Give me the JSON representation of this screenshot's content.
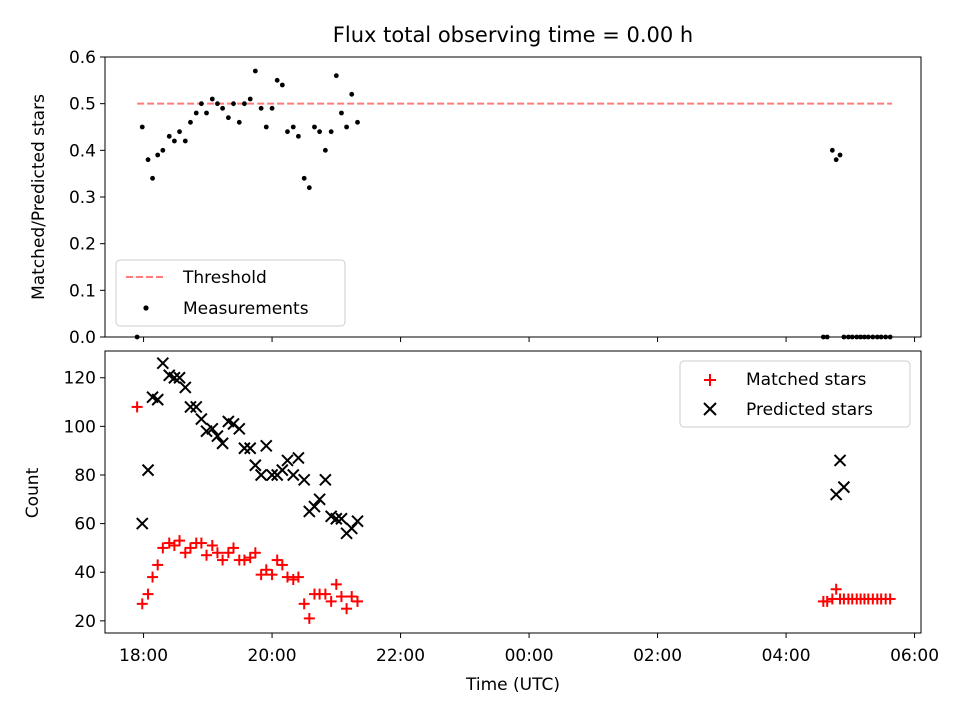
{
  "chart_data": [
    {
      "type": "scatter",
      "title": "Flux total observing time = 0.00 h",
      "xlabel": "",
      "ylabel": "Matched/Predicted stars",
      "ylim": [
        0,
        0.6
      ],
      "yticks": [
        0.0,
        0.1,
        0.2,
        0.3,
        0.4,
        0.5,
        0.6
      ],
      "ytick_labels": [
        "0.0",
        "0.1",
        "0.2",
        "0.3",
        "0.4",
        "0.5",
        "0.6"
      ],
      "xlim": [
        17.4,
        30.1
      ],
      "legend_position": "lower-left",
      "series": [
        {
          "name": "Threshold",
          "kind": "dashed-line",
          "color": "#ff7a7a",
          "x": [
            17.9,
            29.65
          ],
          "y": [
            0.5,
            0.5
          ]
        },
        {
          "name": "Measurements",
          "kind": "dots",
          "color": "#000000",
          "x": [
            17.9,
            17.98,
            18.07,
            18.14,
            18.22,
            18.3,
            18.4,
            18.48,
            18.56,
            18.65,
            18.73,
            18.82,
            18.9,
            18.98,
            19.07,
            19.15,
            19.23,
            19.32,
            19.4,
            19.49,
            19.57,
            19.66,
            19.74,
            19.83,
            19.91,
            20.0,
            20.08,
            20.16,
            20.24,
            20.33,
            20.41,
            20.5,
            20.58,
            20.66,
            20.74,
            20.83,
            20.92,
            21.0,
            21.08,
            21.16,
            21.24,
            21.33,
            28.58,
            28.64,
            28.72,
            28.78,
            28.84,
            28.9,
            28.97,
            29.03,
            29.1,
            29.16,
            29.22,
            29.28,
            29.35,
            29.42,
            29.48,
            29.55,
            29.62
          ],
          "y": [
            0.0,
            0.45,
            0.38,
            0.34,
            0.39,
            0.4,
            0.43,
            0.42,
            0.44,
            0.42,
            0.46,
            0.48,
            0.5,
            0.48,
            0.51,
            0.5,
            0.49,
            0.47,
            0.5,
            0.46,
            0.5,
            0.51,
            0.57,
            0.49,
            0.45,
            0.49,
            0.55,
            0.54,
            0.44,
            0.45,
            0.43,
            0.34,
            0.32,
            0.45,
            0.44,
            0.4,
            0.44,
            0.56,
            0.48,
            0.45,
            0.52,
            0.46,
            0.0,
            0.0,
            0.4,
            0.38,
            0.39,
            0.0,
            0.0,
            0.0,
            0.0,
            0.0,
            0.0,
            0.0,
            0.0,
            0.0,
            0.0,
            0.0,
            0.0
          ]
        }
      ]
    },
    {
      "type": "scatter",
      "title": "",
      "xlabel": "Time (UTC)",
      "ylabel": "Count",
      "ylim": [
        15,
        131
      ],
      "yticks": [
        20,
        40,
        60,
        80,
        100,
        120
      ],
      "ytick_labels": [
        "20",
        "40",
        "60",
        "80",
        "100",
        "120"
      ],
      "xlim": [
        17.4,
        30.1
      ],
      "xticks": [
        18,
        20,
        22,
        24,
        26,
        28,
        30
      ],
      "xtick_labels": [
        "18:00",
        "20:00",
        "22:00",
        "00:00",
        "02:00",
        "04:00",
        "06:00"
      ],
      "legend_position": "upper-right",
      "series": [
        {
          "name": "Matched stars",
          "marker": "plus",
          "color": "#ff0000",
          "x": [
            17.9,
            17.98,
            18.07,
            18.14,
            18.22,
            18.3,
            18.4,
            18.48,
            18.56,
            18.65,
            18.73,
            18.82,
            18.9,
            18.98,
            19.07,
            19.15,
            19.23,
            19.32,
            19.4,
            19.49,
            19.57,
            19.66,
            19.74,
            19.83,
            19.91,
            20.0,
            20.08,
            20.16,
            20.24,
            20.33,
            20.41,
            20.5,
            20.58,
            20.66,
            20.74,
            20.83,
            20.92,
            21.0,
            21.08,
            21.16,
            21.24,
            21.33,
            28.58,
            28.64,
            28.72,
            28.78,
            28.84,
            28.9,
            28.97,
            29.03,
            29.1,
            29.16,
            29.22,
            29.28,
            29.35,
            29.42,
            29.48,
            29.55,
            29.62
          ],
          "y": [
            108,
            27,
            31,
            38,
            43,
            50,
            52,
            51,
            53,
            48,
            50,
            52,
            52,
            47,
            51,
            48,
            45,
            48,
            50,
            45,
            45,
            46,
            48,
            39,
            41,
            39,
            45,
            43,
            38,
            37,
            38,
            27,
            21,
            31,
            31,
            31,
            28,
            35,
            30,
            25,
            30,
            28,
            28,
            28,
            29,
            33,
            29,
            29,
            29,
            29,
            29,
            29,
            29,
            29,
            29,
            29,
            29,
            29,
            29
          ]
        },
        {
          "name": "Predicted stars",
          "marker": "x",
          "color": "#000000",
          "x": [
            17.98,
            18.07,
            18.14,
            18.22,
            18.3,
            18.4,
            18.48,
            18.56,
            18.65,
            18.73,
            18.82,
            18.9,
            18.98,
            19.07,
            19.15,
            19.23,
            19.32,
            19.4,
            19.49,
            19.57,
            19.66,
            19.74,
            19.83,
            19.91,
            20.0,
            20.08,
            20.16,
            20.24,
            20.33,
            20.41,
            20.5,
            20.58,
            20.66,
            20.74,
            20.83,
            20.92,
            21.0,
            21.08,
            21.16,
            21.24,
            21.33,
            28.78,
            28.84,
            28.9
          ],
          "y": [
            60,
            82,
            112,
            111,
            126,
            121,
            120,
            120,
            116,
            108,
            108,
            103,
            98,
            99,
            96,
            93,
            102,
            101,
            99,
            91,
            91,
            84,
            80,
            92,
            80,
            80,
            82,
            86,
            80,
            87,
            78,
            65,
            67,
            70,
            78,
            63,
            62,
            62,
            56,
            58,
            61,
            72,
            86,
            75
          ]
        }
      ]
    }
  ]
}
